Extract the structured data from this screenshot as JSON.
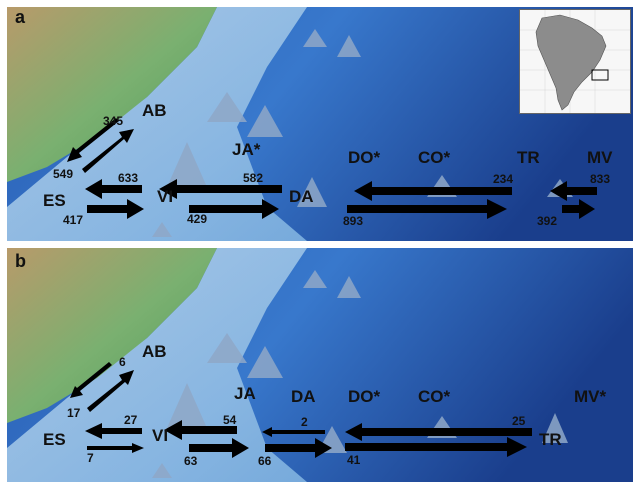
{
  "panels": [
    {
      "label": "a",
      "sites": [
        "AB",
        "ES",
        "VI",
        "JA*",
        "DA",
        "DO*",
        "CO*",
        "TR",
        "MV"
      ],
      "migration_counts": [
        "345",
        "549",
        "633",
        "417",
        "582",
        "429",
        "234",
        "893",
        "833",
        "392"
      ]
    },
    {
      "label": "b",
      "sites": [
        "AB",
        "ES",
        "VI",
        "JA",
        "DA",
        "DO*",
        "CO*",
        "TR",
        "MV*"
      ],
      "migration_counts": [
        "6",
        "17",
        "27",
        "7",
        "54",
        "63",
        "2",
        "66",
        "25",
        "41"
      ]
    }
  ],
  "colors": {
    "ocean_deep": "#1a3e8c",
    "ocean_shelf": "#5fa8e0",
    "land": "#6aa86a",
    "arrow": "#000000"
  }
}
